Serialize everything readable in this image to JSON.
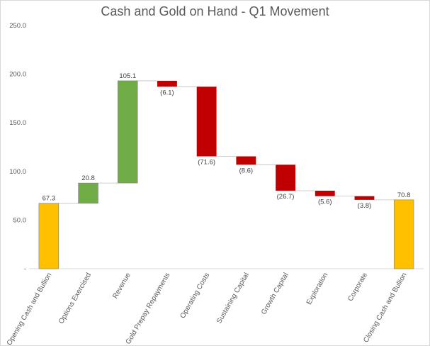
{
  "chart_data": {
    "type": "bar",
    "subtype": "waterfall",
    "title": "Cash and Gold on Hand - Q1 Movement",
    "xlabel": "",
    "ylabel": "",
    "ylim": [
      0,
      250
    ],
    "ytick_labels": [
      "-",
      "50.0",
      "100.0",
      "150.0",
      "200.0",
      "250.0"
    ],
    "grid": false,
    "legend": "none",
    "categories": [
      "Opening Cash and Bullion",
      "Options Exercised",
      "Revenue",
      "Gold Prepay Repayments",
      "Operating Costs",
      "Sustaining Capital",
      "Growth Capital",
      "Exploration",
      "Corporate",
      "Closing Cash and Bullion"
    ],
    "values": [
      67.3,
      20.8,
      105.1,
      -6.1,
      -71.6,
      -8.6,
      -26.7,
      -5.6,
      -3.8,
      70.8
    ],
    "kinds": [
      "total",
      "increase",
      "increase",
      "decrease",
      "decrease",
      "decrease",
      "decrease",
      "decrease",
      "decrease",
      "total"
    ],
    "data_labels": [
      "67.3",
      "20.8",
      "105.1",
      "(6.1)",
      "(71.6)",
      "(8.6)",
      "(26.7)",
      "(5.6)",
      "(3.8)",
      "70.8"
    ],
    "colors": {
      "total": "#ffc000",
      "increase": "#70ad47",
      "decrease": "#c00000"
    }
  }
}
